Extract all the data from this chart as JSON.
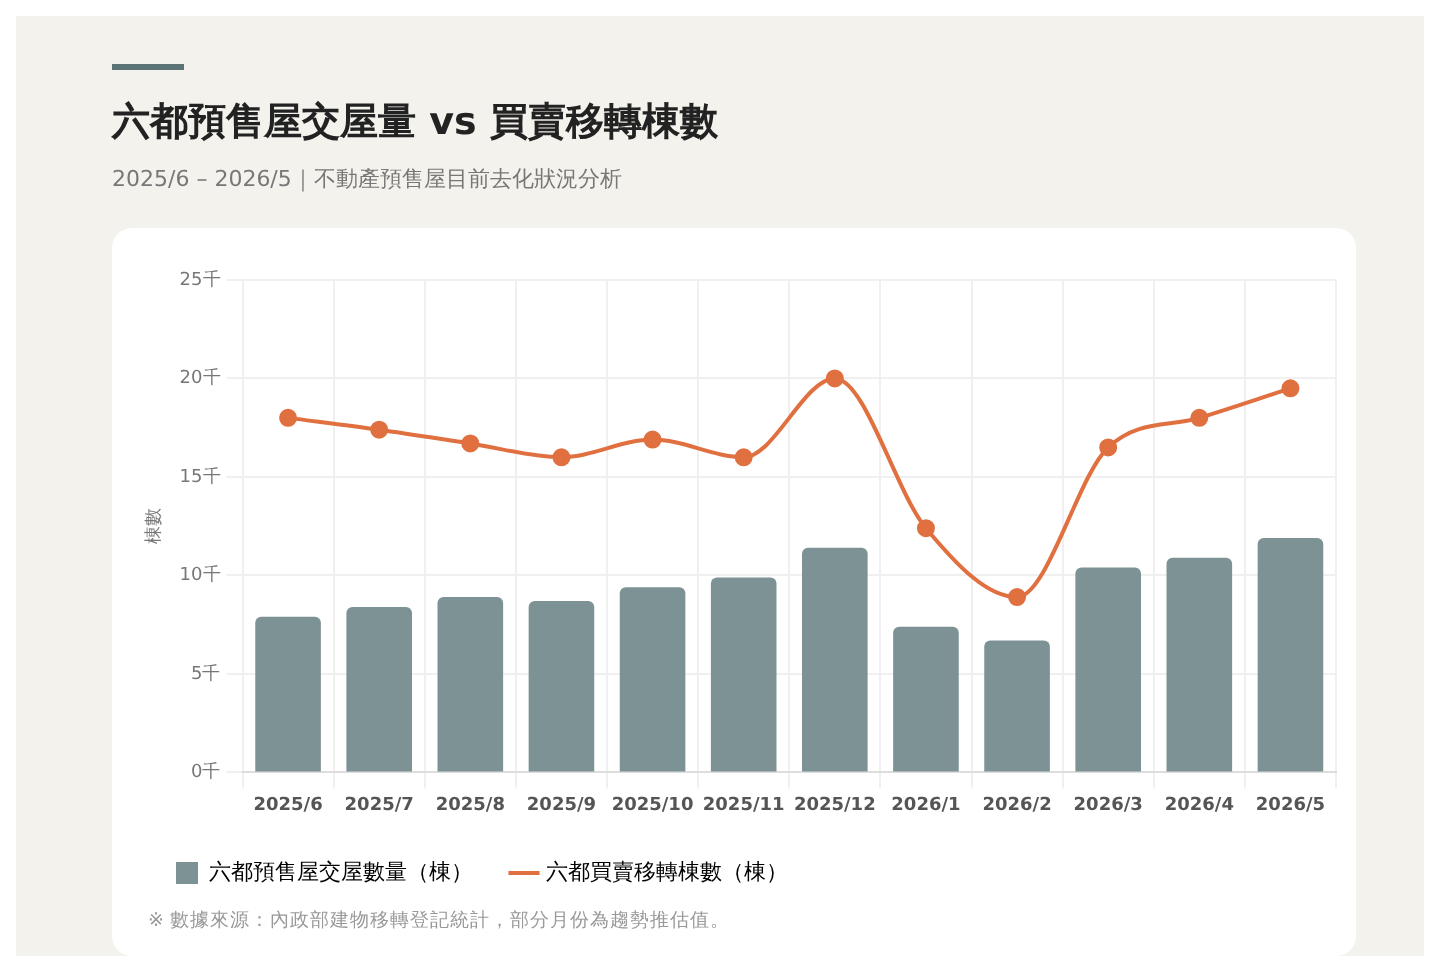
{
  "chart_data": {
    "type": "bar",
    "title": "六都預售屋交屋量 vs 買賣移轉棟數",
    "subtitle": "2025/6 – 2026/5｜不動產預售屋目前去化狀況分析",
    "ylabel": "棟數",
    "categories": [
      "2025/6",
      "2025/7",
      "2025/8",
      "2025/9",
      "2025/10",
      "2025/11",
      "2025/12",
      "2026/1",
      "2026/2",
      "2026/3",
      "2026/4",
      "2026/5"
    ],
    "series": [
      {
        "name": "六都預售屋交屋數量（棟）",
        "color": "#7d9294",
        "values": [
          7.9,
          8.4,
          8.9,
          8.7,
          9.4,
          9.9,
          11.4,
          7.4,
          6.7,
          10.4,
          10.9,
          11.9
        ]
      },
      {
        "name": "六都買賣移轉棟數（棟）",
        "type": "line",
        "color": "#e07040",
        "marker": "circle",
        "values": [
          18.0,
          17.4,
          16.7,
          16.0,
          16.9,
          16.0,
          20.0,
          12.4,
          8.9,
          16.5,
          18.0,
          19.5
        ]
      }
    ],
    "ylim": [
      0,
      25
    ],
    "yticks": [
      {
        "value": 0,
        "label": "0千"
      },
      {
        "value": 5,
        "label": "5千"
      },
      {
        "value": 10,
        "label": "10千"
      },
      {
        "value": 15,
        "label": "15千"
      },
      {
        "value": 20,
        "label": "20千"
      },
      {
        "value": 25,
        "label": "25千"
      }
    ],
    "grid": true,
    "legend": "bottom",
    "annotations": [
      "※ 數據來源：內政部建物移轉登記統計，部分月份為趨勢推估值。"
    ]
  }
}
